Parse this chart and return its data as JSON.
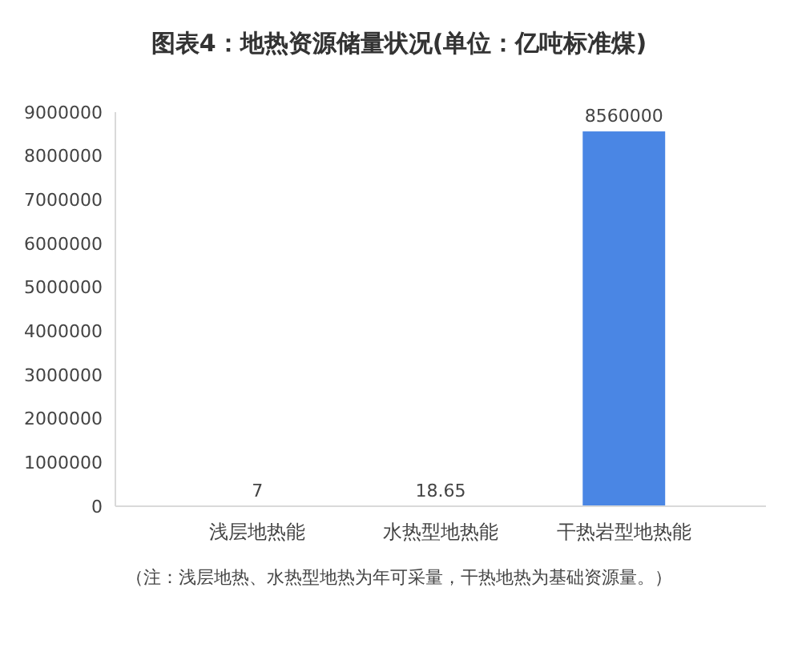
{
  "chart_data": {
    "type": "bar",
    "title": "图表4：地热资源储量状况(单位：亿吨标准煤)",
    "categories": [
      "浅层地热能",
      "水热型地热能",
      "干热岩型地热能"
    ],
    "values": [
      7,
      18.65,
      8560000
    ],
    "color": "#4a86e4",
    "ylim": [
      0,
      9000000
    ],
    "yticks": [
      0,
      1000000,
      2000000,
      3000000,
      4000000,
      5000000,
      6000000,
      7000000,
      8000000,
      9000000
    ],
    "grid": false,
    "data_labels": true,
    "annotations": [
      "（注：浅层地热、水热型地热为年可采量，干热地热为基础资源量。）"
    ]
  }
}
